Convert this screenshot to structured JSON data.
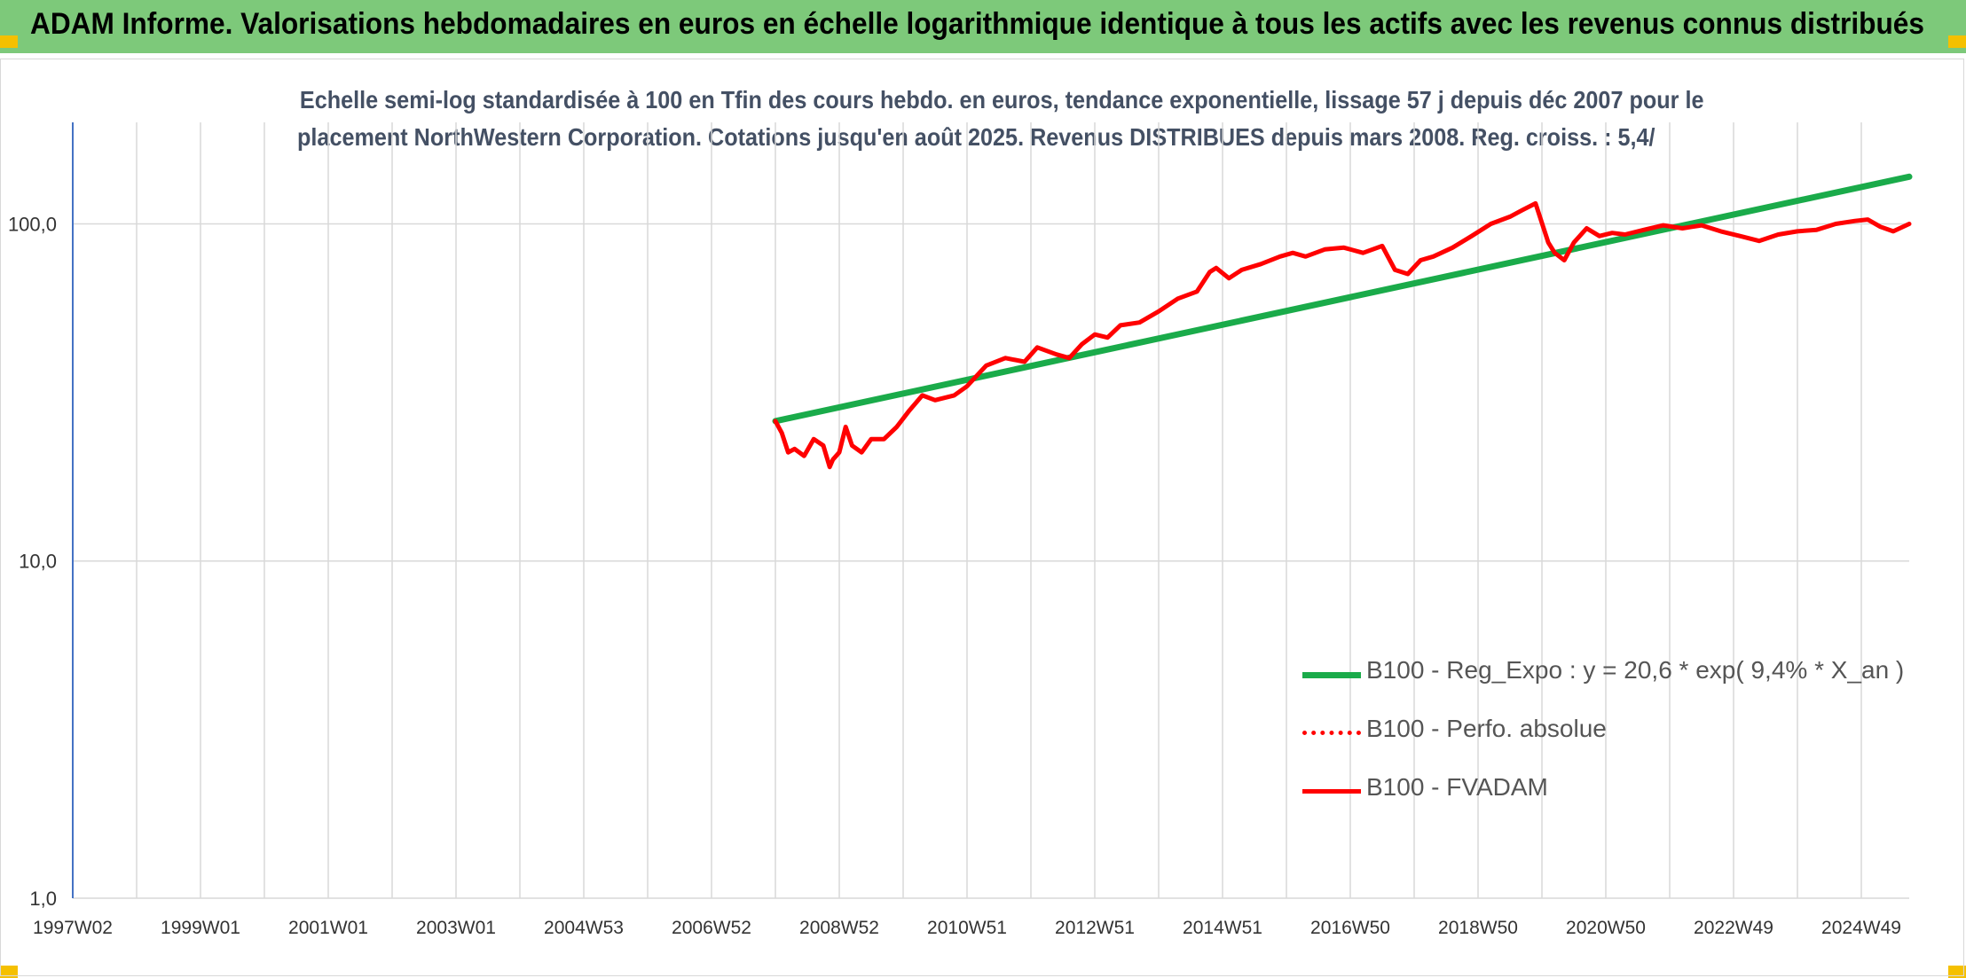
{
  "header": {
    "title": "ADAM Informe. Valorisations hebdomadaires en euros en échelle logarithmique identique à tous les actifs avec les revenus connus distribués"
  },
  "colors": {
    "banner": "#7dc97a",
    "trend": "#1aab4a",
    "fvadam": "#ff0000",
    "grid": "#d9d9d9",
    "axis": "#4472c4"
  },
  "chart_data": {
    "type": "line",
    "title_lines": [
      "Echelle semi-log standardisée à 100 en Tfin des cours hebdo. en euros, tendance exponentielle, lissage 57 j depuis déc 2007 pour le",
      "placement NorthWestern Corporation. Cotations jusqu'en août 2025. Revenus DISTRIBUES depuis mars 2008. Reg. croiss. : 5,4/"
    ],
    "y_scale": "log",
    "ylim": [
      1,
      200
    ],
    "y_ticks": [
      "1,0",
      "10,0",
      "100,0"
    ],
    "y_tick_values": [
      1,
      10,
      100
    ],
    "x_range": [
      1997.0,
      2025.75
    ],
    "x_ticks": [
      "1997W02",
      "1999W01",
      "2001W01",
      "2003W01",
      "2004W53",
      "2006W52",
      "2008W52",
      "2010W51",
      "2012W51",
      "2014W51",
      "2016W50",
      "2018W50",
      "2020W50",
      "2022W49",
      "2024W49"
    ],
    "x_tick_values": [
      1997.0,
      1999.0,
      2001.0,
      2003.0,
      2005.0,
      2007.0,
      2009.0,
      2011.0,
      2013.0,
      2015.0,
      2017.0,
      2019.0,
      2021.0,
      2023.0,
      2025.0
    ],
    "grid": "on",
    "legend_position": "right-middle",
    "series": [
      {
        "name": "B100 - Reg_Expo : y = 20,6 * exp( 9,4% *  X_an )",
        "style": "solid-thick",
        "color": "#1aab4a",
        "x": [
          2008.0,
          2025.75
        ],
        "y": [
          26.0,
          138.0
        ]
      },
      {
        "name": "B100 - Perfo. absolue",
        "style": "dotted",
        "color": "#ff0000",
        "x": [],
        "y": []
      },
      {
        "name": "B100 - FVADAM",
        "style": "solid",
        "color": "#ff0000",
        "x": [
          2008.0,
          2008.1,
          2008.2,
          2008.3,
          2008.45,
          2008.6,
          2008.75,
          2008.85,
          2008.9,
          2009.0,
          2009.1,
          2009.2,
          2009.35,
          2009.5,
          2009.7,
          2009.9,
          2010.1,
          2010.3,
          2010.5,
          2010.8,
          2011.0,
          2011.3,
          2011.6,
          2011.9,
          2012.1,
          2012.4,
          2012.6,
          2012.8,
          2013.0,
          2013.2,
          2013.4,
          2013.7,
          2014.0,
          2014.3,
          2014.6,
          2014.8,
          2014.9,
          2015.1,
          2015.3,
          2015.6,
          2015.9,
          2016.1,
          2016.3,
          2016.6,
          2016.9,
          2017.2,
          2017.5,
          2017.7,
          2017.9,
          2018.1,
          2018.3,
          2018.6,
          2018.9,
          2019.2,
          2019.5,
          2019.7,
          2019.9,
          2020.1,
          2020.2,
          2020.35,
          2020.5,
          2020.7,
          2020.9,
          2021.1,
          2021.3,
          2021.6,
          2021.9,
          2022.2,
          2022.5,
          2022.8,
          2023.1,
          2023.4,
          2023.7,
          2024.0,
          2024.3,
          2024.6,
          2024.9,
          2025.1,
          2025.3,
          2025.5,
          2025.75
        ],
        "y": [
          26,
          24,
          21,
          21.5,
          20.5,
          23,
          22,
          19,
          20,
          21,
          25,
          22,
          21,
          23,
          23,
          25,
          28,
          31,
          30,
          31,
          33,
          38,
          40,
          39,
          43,
          41,
          40,
          44,
          47,
          46,
          50,
          51,
          55,
          60,
          63,
          72,
          74,
          69,
          73,
          76,
          80,
          82,
          80,
          84,
          85,
          82,
          86,
          73,
          71,
          78,
          80,
          85,
          92,
          100,
          105,
          110,
          115,
          88,
          82,
          78,
          88,
          97,
          92,
          94,
          93,
          96,
          99,
          97,
          99,
          95,
          92,
          89,
          93,
          95,
          96,
          100,
          102,
          103,
          98,
          95,
          100
        ]
      }
    ]
  }
}
